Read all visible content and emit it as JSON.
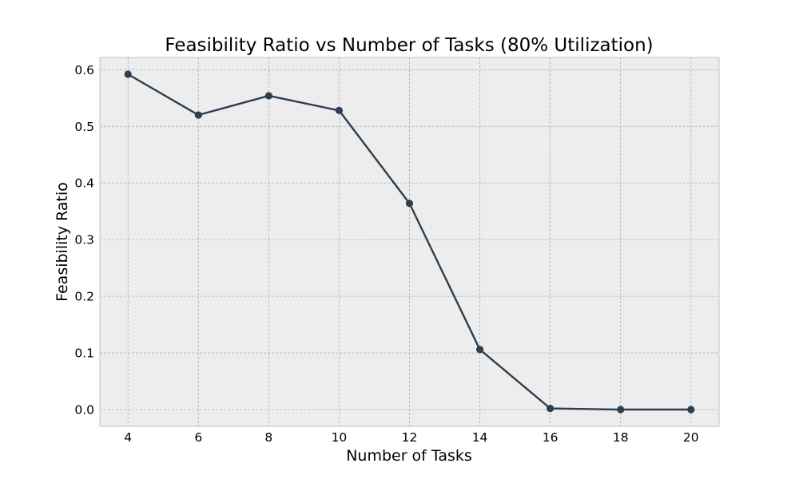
{
  "chart_data": {
    "type": "line",
    "title": "Feasibility Ratio vs Number of Tasks (80% Utilization)",
    "xlabel": "Number of Tasks",
    "ylabel": "Feasibility Ratio",
    "x": [
      4,
      6,
      8,
      10,
      12,
      14,
      16,
      18,
      20
    ],
    "series": [
      {
        "values": [
          0.592,
          0.52,
          0.554,
          0.528,
          0.364,
          0.106,
          0.002,
          0.0,
          0.0
        ]
      }
    ],
    "xticks": [
      4,
      6,
      8,
      10,
      12,
      14,
      16,
      18,
      20
    ],
    "yticks": [
      0.0,
      0.1,
      0.2,
      0.3,
      0.4,
      0.5,
      0.6
    ],
    "xtick_labels": [
      "4",
      "6",
      "8",
      "10",
      "12",
      "14",
      "16",
      "18",
      "20"
    ],
    "ytick_labels": [
      "0.0",
      "0.1",
      "0.2",
      "0.3",
      "0.4",
      "0.5",
      "0.6"
    ],
    "xlim": [
      3.2,
      20.8
    ],
    "ylim": [
      -0.0296,
      0.6216
    ],
    "grid": true,
    "marker": "circle",
    "colors": {
      "line": "#2c3e50",
      "marker": "#2c3e50",
      "plot_background": "#ededed"
    }
  }
}
